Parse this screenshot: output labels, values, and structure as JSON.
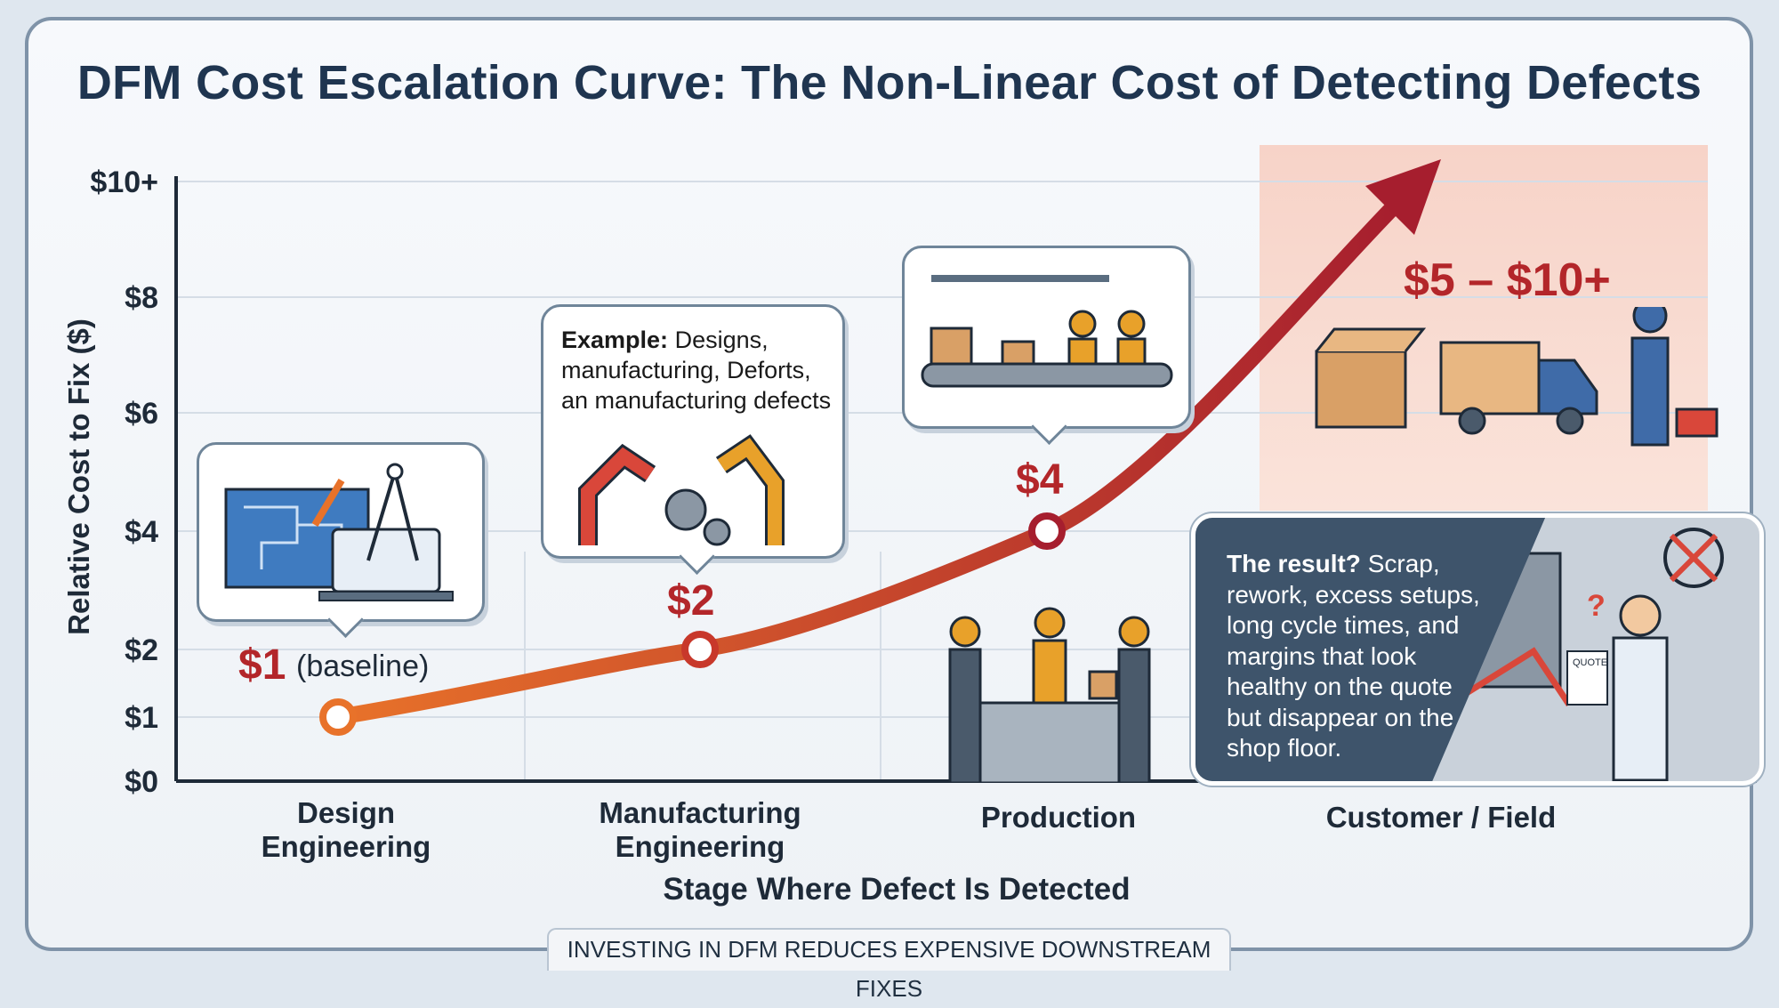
{
  "title": "DFM Cost Escalation Curve: The Non-Linear Cost of Detecting Defects",
  "chart_data": {
    "type": "line",
    "title": "DFM Cost Escalation Curve: The Non-Linear Cost of Detecting Defects",
    "xlabel": "Stage Where Defect Is Detected",
    "ylabel": "Relative Cost to Fix ($)",
    "categories": [
      "Design Engineering",
      "Manufacturing Engineering",
      "Production",
      "Customer / Field"
    ],
    "values": [
      1,
      2,
      4,
      10
    ],
    "data_labels": [
      "$1",
      "$2",
      "$4",
      "$5 – $10+"
    ],
    "customer_range": [
      5,
      10
    ],
    "yticks": [
      0,
      1,
      2,
      4,
      6,
      8,
      10
    ],
    "ytick_labels": [
      "$0",
      "$1",
      "$2",
      "$4",
      "$6",
      "$8",
      "$10+"
    ],
    "ylim": [
      0,
      10
    ],
    "grid": true,
    "line_colors": [
      "#e8722a",
      "#a61e2e"
    ],
    "highlight_zone_color": "#f7d3c8"
  },
  "annotations": {
    "baseline": "(baseline)",
    "example_label": "Example:",
    "example_text": "Designs, manufacturing, Deforts, an manufacturing defects",
    "result_label": "The result?",
    "result_text": "Scrap, rework, excess setups, long cycle times, and margins that look healthy on the quote but disappear on the shop floor.",
    "quote_label": "QUOTE"
  },
  "footer": "INVESTING IN DFM REDUCES EXPENSIVE DOWNSTREAM FIXES"
}
